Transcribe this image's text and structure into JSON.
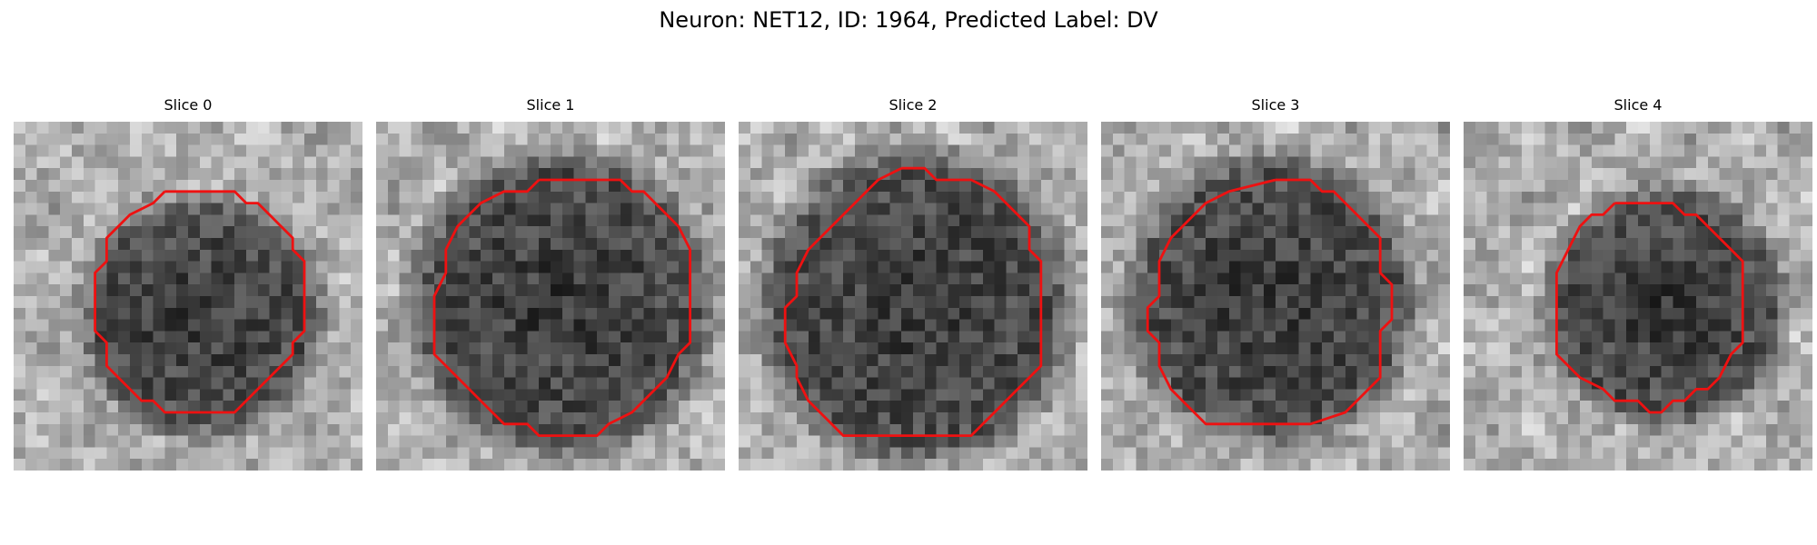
{
  "figure": {
    "title": "Neuron: NET12, ID: 1964, Predicted Label: DV"
  },
  "image": {
    "grid_size": 30,
    "colormap": "gray",
    "contour_color": "#ee1111"
  },
  "slices": [
    {
      "label": "Slice 0",
      "dark_center": [
        0.54,
        0.56
      ],
      "dark_radius": 0.3,
      "contour": [
        [
          13,
          6
        ],
        [
          19,
          6
        ],
        [
          20,
          7
        ],
        [
          21,
          7
        ],
        [
          22,
          8
        ],
        [
          23,
          9
        ],
        [
          24,
          10
        ],
        [
          24,
          11
        ],
        [
          25,
          12
        ],
        [
          25,
          18
        ],
        [
          24,
          19
        ],
        [
          24,
          20
        ],
        [
          23,
          21
        ],
        [
          22,
          22
        ],
        [
          21,
          23
        ],
        [
          20,
          24
        ],
        [
          19,
          25
        ],
        [
          13,
          25
        ],
        [
          12,
          24
        ],
        [
          11,
          24
        ],
        [
          10,
          23
        ],
        [
          9,
          22
        ],
        [
          8,
          21
        ],
        [
          8,
          19
        ],
        [
          7,
          18
        ],
        [
          7,
          13
        ],
        [
          8,
          12
        ],
        [
          8,
          10
        ],
        [
          9,
          9
        ],
        [
          10,
          8
        ],
        [
          12,
          7
        ],
        [
          13,
          6
        ]
      ]
    },
    {
      "label": "Slice 1",
      "dark_center": [
        0.53,
        0.52
      ],
      "dark_radius": 0.38,
      "contour": [
        [
          14,
          5
        ],
        [
          21,
          5
        ],
        [
          22,
          6
        ],
        [
          23,
          6
        ],
        [
          24,
          7
        ],
        [
          25,
          8
        ],
        [
          26,
          9
        ],
        [
          27,
          11
        ],
        [
          27,
          19
        ],
        [
          26,
          20
        ],
        [
          25,
          22
        ],
        [
          23,
          24
        ],
        [
          22,
          25
        ],
        [
          20,
          26
        ],
        [
          19,
          27
        ],
        [
          14,
          27
        ],
        [
          13,
          26
        ],
        [
          11,
          26
        ],
        [
          9,
          24
        ],
        [
          8,
          23
        ],
        [
          6,
          21
        ],
        [
          5,
          20
        ],
        [
          5,
          15
        ],
        [
          6,
          13
        ],
        [
          6,
          11
        ],
        [
          7,
          9
        ],
        [
          8,
          8
        ],
        [
          9,
          7
        ],
        [
          11,
          6
        ],
        [
          13,
          6
        ],
        [
          14,
          5
        ]
      ]
    },
    {
      "label": "Slice 2",
      "dark_center": [
        0.51,
        0.53
      ],
      "dark_radius": 0.39,
      "contour": [
        [
          14,
          4
        ],
        [
          16,
          4
        ],
        [
          17,
          5
        ],
        [
          20,
          5
        ],
        [
          22,
          6
        ],
        [
          23,
          7
        ],
        [
          24,
          8
        ],
        [
          25,
          9
        ],
        [
          25,
          11
        ],
        [
          26,
          12
        ],
        [
          26,
          21
        ],
        [
          25,
          22
        ],
        [
          24,
          23
        ],
        [
          22,
          25
        ],
        [
          21,
          26
        ],
        [
          20,
          27
        ],
        [
          9,
          27
        ],
        [
          8,
          26
        ],
        [
          7,
          25
        ],
        [
          6,
          24
        ],
        [
          5,
          22
        ],
        [
          5,
          21
        ],
        [
          4,
          19
        ],
        [
          4,
          16
        ],
        [
          5,
          15
        ],
        [
          5,
          13
        ],
        [
          6,
          11
        ],
        [
          7,
          10
        ],
        [
          8,
          9
        ],
        [
          9,
          8
        ],
        [
          10,
          7
        ],
        [
          11,
          6
        ],
        [
          12,
          5
        ],
        [
          14,
          4
        ]
      ]
    },
    {
      "label": "Slice 3",
      "dark_center": [
        0.49,
        0.51
      ],
      "dark_radius": 0.36,
      "contour": [
        [
          15,
          5
        ],
        [
          18,
          5
        ],
        [
          19,
          6
        ],
        [
          20,
          6
        ],
        [
          21,
          7
        ],
        [
          22,
          8
        ],
        [
          23,
          9
        ],
        [
          24,
          10
        ],
        [
          24,
          13
        ],
        [
          25,
          14
        ],
        [
          25,
          17
        ],
        [
          24,
          18
        ],
        [
          24,
          22
        ],
        [
          23,
          23
        ],
        [
          22,
          24
        ],
        [
          21,
          25
        ],
        [
          18,
          26
        ],
        [
          9,
          26
        ],
        [
          8,
          25
        ],
        [
          7,
          24
        ],
        [
          6,
          23
        ],
        [
          5,
          21
        ],
        [
          5,
          19
        ],
        [
          4,
          18
        ],
        [
          4,
          16
        ],
        [
          5,
          15
        ],
        [
          5,
          12
        ],
        [
          6,
          10
        ],
        [
          7,
          9
        ],
        [
          8,
          8
        ],
        [
          9,
          7
        ],
        [
          11,
          6
        ],
        [
          15,
          5
        ],
        [
          15,
          5
        ]
      ]
    },
    {
      "label": "Slice 4",
      "dark_center": [
        0.58,
        0.53
      ],
      "dark_radius": 0.3,
      "contour": [
        [
          13,
          7
        ],
        [
          18,
          7
        ],
        [
          19,
          8
        ],
        [
          20,
          8
        ],
        [
          21,
          9
        ],
        [
          22,
          10
        ],
        [
          23,
          11
        ],
        [
          24,
          12
        ],
        [
          24,
          19
        ],
        [
          23,
          20
        ],
        [
          22,
          22
        ],
        [
          21,
          23
        ],
        [
          20,
          23
        ],
        [
          19,
          24
        ],
        [
          18,
          24
        ],
        [
          17,
          25
        ],
        [
          16,
          25
        ],
        [
          15,
          24
        ],
        [
          13,
          24
        ],
        [
          12,
          23
        ],
        [
          10,
          22
        ],
        [
          9,
          21
        ],
        [
          8,
          20
        ],
        [
          8,
          15
        ],
        [
          8,
          13
        ],
        [
          9,
          11
        ],
        [
          10,
          9
        ],
        [
          11,
          8
        ],
        [
          12,
          8
        ],
        [
          13,
          7
        ]
      ]
    }
  ]
}
